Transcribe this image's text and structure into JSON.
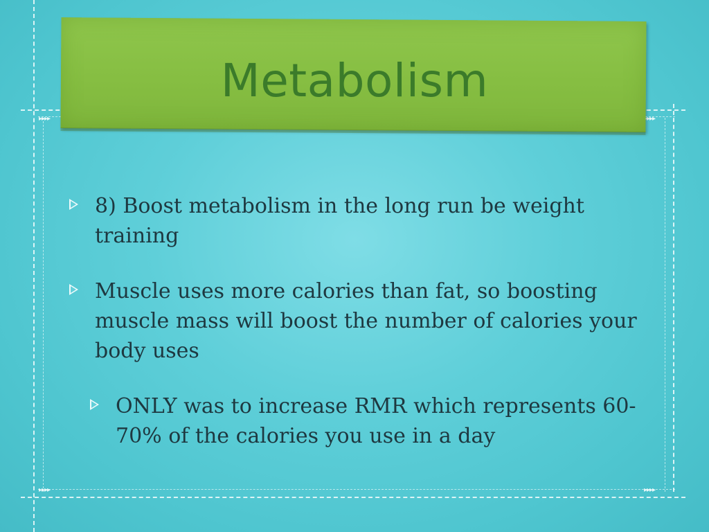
{
  "slide": {
    "title": "Metabolism",
    "bullets": [
      {
        "level": 1,
        "text": "8) Boost metabolism in the long run be weight training"
      },
      {
        "level": 1,
        "text": "Muscle uses more calories than fat, so boosting muscle mass will boost the number of calories your body uses"
      },
      {
        "level": 2,
        "text": "ONLY was to increase RMR which represents 60-70% of the calories you use in a day"
      }
    ]
  },
  "colors": {
    "background": "#5fcfd9",
    "banner": "#86be42",
    "title_text": "#3b7b2a",
    "body_text": "#1e3840"
  },
  "icons": {
    "bullet": "hollow-triangle-bullet-icon",
    "frame_decoration": "stitched-dashed-frame"
  }
}
